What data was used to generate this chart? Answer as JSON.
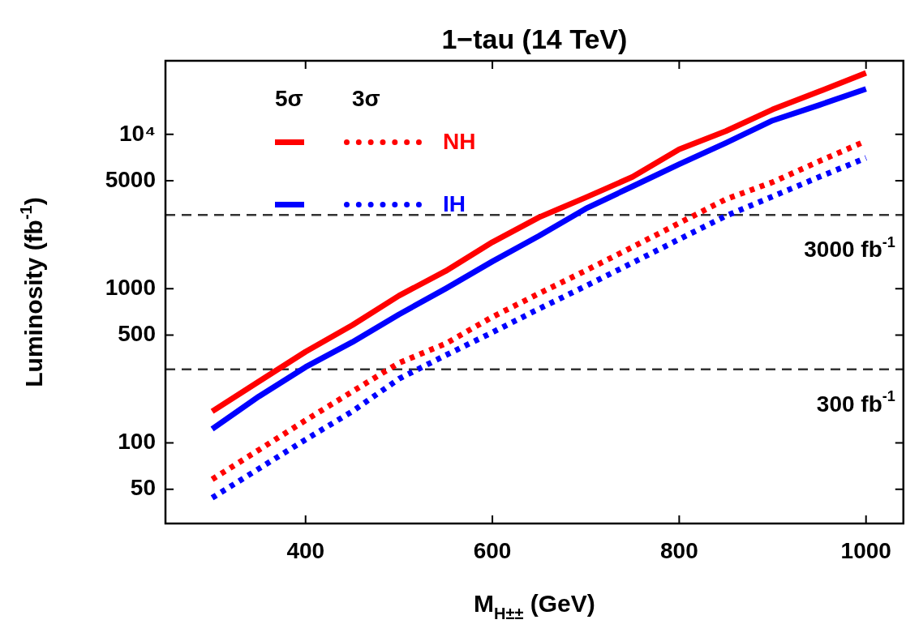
{
  "chart_data": {
    "type": "line",
    "title": "1−tau (14 TeV)",
    "xlabel": "M$_{H±±}$ (GeV)",
    "ylabel": "Luminosity (fb$^{-1}$)",
    "x": [
      300,
      350,
      400,
      450,
      500,
      550,
      600,
      650,
      700,
      750,
      800,
      850,
      900,
      950,
      1000
    ],
    "series": [
      {
        "name": "NH",
        "color": "#ff0000",
        "line_style": "solid",
        "values": [
          160,
          250,
          390,
          580,
          900,
          1300,
          2000,
          2900,
          3900,
          5300,
          8000,
          10500,
          14500,
          19000,
          25000
        ]
      },
      {
        "name": "IH",
        "color": "#0000ff",
        "line_style": "solid",
        "values": [
          123,
          200,
          310,
          450,
          680,
          1000,
          1500,
          2200,
          3300,
          4600,
          6400,
          8800,
          12300,
          15500,
          19700
        ]
      },
      {
        "color": "#ff0000",
        "line_style": "dotted",
        "values": [
          58,
          90,
          140,
          215,
          330,
          440,
          655,
          930,
          1310,
          1860,
          2660,
          3800,
          4900,
          6700,
          9070
        ]
      },
      {
        "color": "#0000ff",
        "line_style": "dotted",
        "values": [
          44,
          68,
          105,
          160,
          260,
          370,
          520,
          740,
          1040,
          1470,
          2090,
          2960,
          3960,
          5300,
          7040
        ]
      }
    ],
    "xlim": [
      250,
      1040
    ],
    "xticks": [
      400,
      600,
      800,
      1000
    ],
    "ylim": [
      30,
      30000
    ],
    "yticks": [
      50,
      100,
      500,
      1000,
      5000,
      {
        "value": 10000,
        "label": "10⁴"
      }
    ],
    "log": "y",
    "legend": "top left",
    "annotations": [
      "5σ",
      "3σ"
    ],
    "ref_lines": [
      {
        "axis": "y",
        "value": 3000,
        "label": "3000 fb$^{-1}$",
        "color": "#333333",
        "line_style": "dashed"
      },
      {
        "axis": "y",
        "value": 300,
        "label": "300 fb$^{-1}$",
        "color": "#333333",
        "line_style": "dashed"
      }
    ]
  }
}
